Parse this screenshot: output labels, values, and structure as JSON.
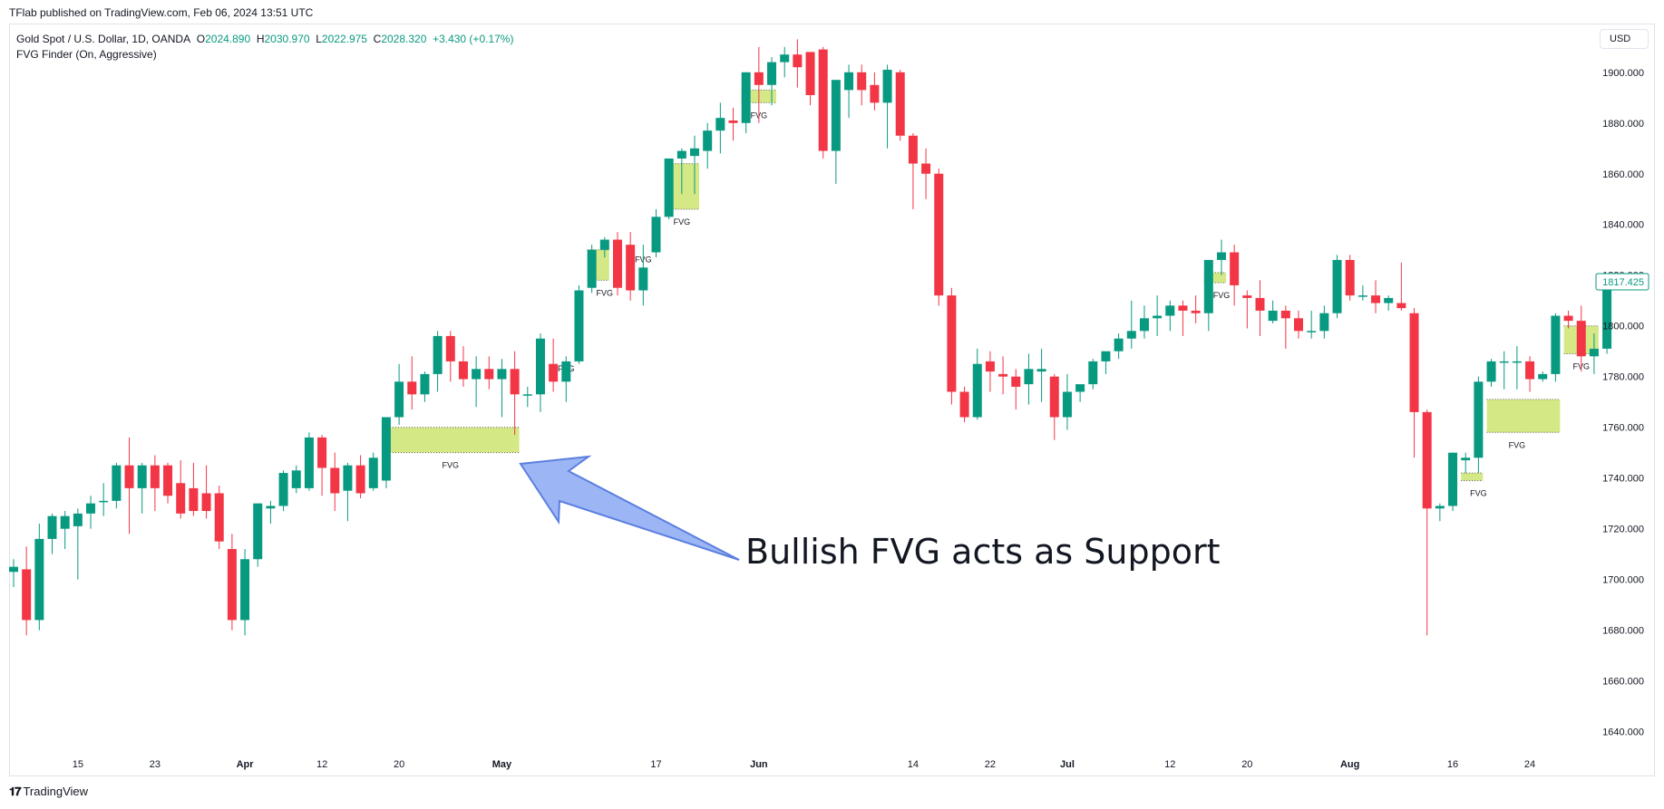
{
  "header": {
    "published": "TFlab published on TradingView.com, Feb 06, 2024 13:51 UTC"
  },
  "legend": {
    "symbol": "Gold Spot / U.S. Dollar, 1D, OANDA",
    "o_label": "O",
    "o_value": "2024.890",
    "h_label": "H",
    "h_value": "2030.970",
    "l_label": "L",
    "l_value": "2022.975",
    "c_label": "C",
    "c_value": "2028.320",
    "change": "+3.430 (+0.17%)",
    "indicator": "FVG Finder (On, Aggressive)"
  },
  "currency_button": "USD",
  "footer": {
    "logo": "𝟏𝟕",
    "brand": "TradingView"
  },
  "annotation": {
    "text": "Bullish FVG acts as Support"
  },
  "colors": {
    "up": "#089981",
    "down": "#f23645",
    "fvg": "#d4e986",
    "arrow": "#7b9cf2",
    "last_price": "#089981"
  },
  "chart_data": {
    "type": "candlestick",
    "y_axis": {
      "ylim": [
        1632,
        1916
      ],
      "ticks": [
        "1640.000",
        "1660.000",
        "1680.000",
        "1700.000",
        "1720.000",
        "1740.000",
        "1760.000",
        "1780.000",
        "1800.000",
        "1820.000",
        "1840.000",
        "1860.000",
        "1880.000",
        "1900.000"
      ],
      "tick_values": [
        1640,
        1660,
        1680,
        1700,
        1720,
        1740,
        1760,
        1780,
        1800,
        1820,
        1840,
        1860,
        1880,
        1900
      ]
    },
    "x_axis": {
      "labels": [
        "15",
        "23",
        "Apr",
        "12",
        "20",
        "May",
        "17",
        "Jun",
        "14",
        "22",
        "Jul",
        "12",
        "20",
        "Aug",
        "16",
        "24"
      ],
      "label_bar_index": [
        5,
        11,
        18,
        24,
        30,
        38,
        50,
        58,
        70,
        76,
        82,
        90,
        96,
        104,
        112,
        118
      ]
    },
    "last_price": "1817.425",
    "last_price_value": 1817.425,
    "candles": [
      {
        "o": 1703,
        "h": 1708,
        "l": 1697,
        "c": 1705
      },
      {
        "o": 1704,
        "h": 1713,
        "l": 1678,
        "c": 1684
      },
      {
        "o": 1684,
        "h": 1722,
        "l": 1680,
        "c": 1716
      },
      {
        "o": 1716,
        "h": 1726,
        "l": 1710,
        "c": 1725
      },
      {
        "o": 1720,
        "h": 1727,
        "l": 1712,
        "c": 1725
      },
      {
        "o": 1721,
        "h": 1728,
        "l": 1700,
        "c": 1726
      },
      {
        "o": 1726,
        "h": 1733,
        "l": 1720,
        "c": 1730
      },
      {
        "o": 1731,
        "h": 1738,
        "l": 1725,
        "c": 1731
      },
      {
        "o": 1731,
        "h": 1746,
        "l": 1728,
        "c": 1745
      },
      {
        "o": 1745,
        "h": 1756,
        "l": 1718,
        "c": 1736
      },
      {
        "o": 1736,
        "h": 1746,
        "l": 1726,
        "c": 1745
      },
      {
        "o": 1745,
        "h": 1749,
        "l": 1727,
        "c": 1736
      },
      {
        "o": 1745,
        "h": 1746,
        "l": 1730,
        "c": 1733
      },
      {
        "o": 1738,
        "h": 1747,
        "l": 1724,
        "c": 1726
      },
      {
        "o": 1736,
        "h": 1746,
        "l": 1725,
        "c": 1727
      },
      {
        "o": 1734,
        "h": 1745,
        "l": 1724,
        "c": 1727
      },
      {
        "o": 1734,
        "h": 1737,
        "l": 1712,
        "c": 1715
      },
      {
        "o": 1712,
        "h": 1718,
        "l": 1680,
        "c": 1684
      },
      {
        "o": 1684,
        "h": 1712,
        "l": 1678,
        "c": 1708
      },
      {
        "o": 1708,
        "h": 1730,
        "l": 1705,
        "c": 1730
      },
      {
        "o": 1728,
        "h": 1731,
        "l": 1722,
        "c": 1729
      },
      {
        "o": 1729,
        "h": 1743,
        "l": 1727,
        "c": 1742
      },
      {
        "o": 1736,
        "h": 1745,
        "l": 1734,
        "c": 1743
      },
      {
        "o": 1736,
        "h": 1758,
        "l": 1735,
        "c": 1756
      },
      {
        "o": 1756,
        "h": 1757,
        "l": 1733,
        "c": 1744
      },
      {
        "o": 1744,
        "h": 1750,
        "l": 1727,
        "c": 1734
      },
      {
        "o": 1735,
        "h": 1746,
        "l": 1723,
        "c": 1745
      },
      {
        "o": 1745,
        "h": 1749,
        "l": 1732,
        "c": 1734
      },
      {
        "o": 1736,
        "h": 1750,
        "l": 1735,
        "c": 1748
      },
      {
        "o": 1739,
        "h": 1764,
        "l": 1736,
        "c": 1764
      },
      {
        "o": 1764,
        "h": 1785,
        "l": 1761,
        "c": 1778
      },
      {
        "o": 1778,
        "h": 1788,
        "l": 1767,
        "c": 1773
      },
      {
        "o": 1773,
        "h": 1782,
        "l": 1770,
        "c": 1781
      },
      {
        "o": 1781,
        "h": 1798,
        "l": 1774,
        "c": 1796
      },
      {
        "o": 1796,
        "h": 1798,
        "l": 1778,
        "c": 1786
      },
      {
        "o": 1786,
        "h": 1792,
        "l": 1776,
        "c": 1779
      },
      {
        "o": 1779,
        "h": 1788,
        "l": 1768,
        "c": 1783
      },
      {
        "o": 1783,
        "h": 1788,
        "l": 1775,
        "c": 1779
      },
      {
        "o": 1779,
        "h": 1787,
        "l": 1764,
        "c": 1783
      },
      {
        "o": 1783,
        "h": 1790,
        "l": 1757,
        "c": 1773
      },
      {
        "o": 1773,
        "h": 1776,
        "l": 1768,
        "c": 1773
      },
      {
        "o": 1773,
        "h": 1797,
        "l": 1766,
        "c": 1795
      },
      {
        "o": 1785,
        "h": 1795,
        "l": 1774,
        "c": 1778
      },
      {
        "o": 1778,
        "h": 1788,
        "l": 1770,
        "c": 1786
      },
      {
        "o": 1786,
        "h": 1816,
        "l": 1785,
        "c": 1814
      },
      {
        "o": 1815,
        "h": 1832,
        "l": 1813,
        "c": 1830
      },
      {
        "o": 1830,
        "h": 1835,
        "l": 1827,
        "c": 1834
      },
      {
        "o": 1834,
        "h": 1837,
        "l": 1812,
        "c": 1815
      },
      {
        "o": 1832,
        "h": 1837,
        "l": 1810,
        "c": 1814
      },
      {
        "o": 1814,
        "h": 1832,
        "l": 1808,
        "c": 1823
      },
      {
        "o": 1829,
        "h": 1846,
        "l": 1827,
        "c": 1843
      },
      {
        "o": 1843,
        "h": 1866,
        "l": 1842,
        "c": 1866
      },
      {
        "o": 1866,
        "h": 1870,
        "l": 1852,
        "c": 1869
      },
      {
        "o": 1867,
        "h": 1875,
        "l": 1852,
        "c": 1870
      },
      {
        "o": 1869,
        "h": 1880,
        "l": 1862,
        "c": 1877
      },
      {
        "o": 1877,
        "h": 1888,
        "l": 1868,
        "c": 1882
      },
      {
        "o": 1881,
        "h": 1886,
        "l": 1873,
        "c": 1880
      },
      {
        "o": 1880,
        "h": 1900,
        "l": 1876,
        "c": 1900
      },
      {
        "o": 1900,
        "h": 1910,
        "l": 1880,
        "c": 1895
      },
      {
        "o": 1895,
        "h": 1906,
        "l": 1887,
        "c": 1904
      },
      {
        "o": 1904,
        "h": 1910,
        "l": 1898,
        "c": 1907
      },
      {
        "o": 1907,
        "h": 1913,
        "l": 1894,
        "c": 1902
      },
      {
        "o": 1908,
        "h": 1908,
        "l": 1887,
        "c": 1891
      },
      {
        "o": 1909,
        "h": 1910,
        "l": 1866,
        "c": 1869
      },
      {
        "o": 1869,
        "h": 1897,
        "l": 1856,
        "c": 1897
      },
      {
        "o": 1893,
        "h": 1903,
        "l": 1882,
        "c": 1900
      },
      {
        "o": 1900,
        "h": 1903,
        "l": 1887,
        "c": 1893
      },
      {
        "o": 1895,
        "h": 1900,
        "l": 1885,
        "c": 1888
      },
      {
        "o": 1888,
        "h": 1903,
        "l": 1870,
        "c": 1901
      },
      {
        "o": 1900,
        "h": 1901,
        "l": 1873,
        "c": 1875
      },
      {
        "o": 1875,
        "h": 1876,
        "l": 1846,
        "c": 1864
      },
      {
        "o": 1864,
        "h": 1870,
        "l": 1850,
        "c": 1860
      },
      {
        "o": 1860,
        "h": 1862,
        "l": 1808,
        "c": 1812
      },
      {
        "o": 1812,
        "h": 1815,
        "l": 1769,
        "c": 1774
      },
      {
        "o": 1774,
        "h": 1776,
        "l": 1762,
        "c": 1764
      },
      {
        "o": 1764,
        "h": 1791,
        "l": 1763,
        "c": 1785
      },
      {
        "o": 1786,
        "h": 1790,
        "l": 1774,
        "c": 1782
      },
      {
        "o": 1781,
        "h": 1788,
        "l": 1773,
        "c": 1780
      },
      {
        "o": 1780,
        "h": 1783,
        "l": 1767,
        "c": 1776
      },
      {
        "o": 1777,
        "h": 1789,
        "l": 1769,
        "c": 1783
      },
      {
        "o": 1782,
        "h": 1791,
        "l": 1770,
        "c": 1783
      },
      {
        "o": 1780,
        "h": 1781,
        "l": 1755,
        "c": 1764
      },
      {
        "o": 1764,
        "h": 1781,
        "l": 1759,
        "c": 1774
      },
      {
        "o": 1774,
        "h": 1776,
        "l": 1770,
        "c": 1777
      },
      {
        "o": 1777,
        "h": 1787,
        "l": 1775,
        "c": 1786
      },
      {
        "o": 1786,
        "h": 1789,
        "l": 1781,
        "c": 1790
      },
      {
        "o": 1790,
        "h": 1797,
        "l": 1787,
        "c": 1795
      },
      {
        "o": 1795,
        "h": 1810,
        "l": 1791,
        "c": 1798
      },
      {
        "o": 1798,
        "h": 1808,
        "l": 1795,
        "c": 1803
      },
      {
        "o": 1803,
        "h": 1812,
        "l": 1796,
        "c": 1804
      },
      {
        "o": 1804,
        "h": 1810,
        "l": 1798,
        "c": 1808
      },
      {
        "o": 1808,
        "h": 1810,
        "l": 1796,
        "c": 1806
      },
      {
        "o": 1806,
        "h": 1812,
        "l": 1801,
        "c": 1805
      },
      {
        "o": 1805,
        "h": 1826,
        "l": 1798,
        "c": 1826
      },
      {
        "o": 1826,
        "h": 1834,
        "l": 1820,
        "c": 1829
      },
      {
        "o": 1829,
        "h": 1832,
        "l": 1808,
        "c": 1816
      },
      {
        "o": 1812,
        "h": 1814,
        "l": 1799,
        "c": 1811
      },
      {
        "o": 1811,
        "h": 1818,
        "l": 1796,
        "c": 1806
      },
      {
        "o": 1802,
        "h": 1810,
        "l": 1801,
        "c": 1806
      },
      {
        "o": 1806,
        "h": 1808,
        "l": 1791,
        "c": 1803
      },
      {
        "o": 1803,
        "h": 1806,
        "l": 1795,
        "c": 1798
      },
      {
        "o": 1798,
        "h": 1806,
        "l": 1795,
        "c": 1798
      },
      {
        "o": 1798,
        "h": 1808,
        "l": 1795,
        "c": 1805
      },
      {
        "o": 1805,
        "h": 1828,
        "l": 1803,
        "c": 1826
      },
      {
        "o": 1826,
        "h": 1828,
        "l": 1810,
        "c": 1812
      },
      {
        "o": 1812,
        "h": 1816,
        "l": 1810,
        "c": 1812
      },
      {
        "o": 1812,
        "h": 1818,
        "l": 1805,
        "c": 1809
      },
      {
        "o": 1809,
        "h": 1812,
        "l": 1806,
        "c": 1811
      },
      {
        "o": 1809,
        "h": 1825,
        "l": 1806,
        "c": 1807
      },
      {
        "o": 1805,
        "h": 1807,
        "l": 1748,
        "c": 1766
      },
      {
        "o": 1766,
        "h": 1767,
        "l": 1678,
        "c": 1728
      },
      {
        "o": 1728,
        "h": 1730,
        "l": 1723,
        "c": 1729
      },
      {
        "o": 1729,
        "h": 1750,
        "l": 1727,
        "c": 1750
      },
      {
        "o": 1747,
        "h": 1750,
        "l": 1742,
        "c": 1748
      },
      {
        "o": 1748,
        "h": 1780,
        "l": 1742,
        "c": 1778
      },
      {
        "o": 1778,
        "h": 1787,
        "l": 1776,
        "c": 1786
      },
      {
        "o": 1786,
        "h": 1790,
        "l": 1775,
        "c": 1786
      },
      {
        "o": 1786,
        "h": 1792,
        "l": 1775,
        "c": 1786
      },
      {
        "o": 1786,
        "h": 1788,
        "l": 1774,
        "c": 1779
      },
      {
        "o": 1779,
        "h": 1782,
        "l": 1778,
        "c": 1781
      },
      {
        "o": 1781,
        "h": 1805,
        "l": 1778,
        "c": 1804
      },
      {
        "o": 1804,
        "h": 1806,
        "l": 1799,
        "c": 1802
      },
      {
        "o": 1802,
        "h": 1808,
        "l": 1782,
        "c": 1788
      },
      {
        "o": 1788,
        "h": 1797,
        "l": 1781,
        "c": 1791
      },
      {
        "o": 1791,
        "h": 1820,
        "l": 1789,
        "c": 1817
      }
    ],
    "fvgs": [
      {
        "start": 29,
        "end": 39,
        "top": 1760,
        "bottom": 1750,
        "label": "FVG",
        "label_bar": 34
      },
      {
        "start": 45,
        "end": 46,
        "top": 1830,
        "bottom": 1818,
        "label": "FVG",
        "label_bar": 46
      },
      {
        "start": 51,
        "end": 53,
        "top": 1864,
        "bottom": 1846,
        "label": "FVG",
        "label_bar": 52
      },
      {
        "start": 57,
        "end": 59,
        "top": 1893,
        "bottom": 1888,
        "label": "FVG",
        "label_bar": 58
      },
      {
        "start": 93,
        "end": 94,
        "top": 1821,
        "bottom": 1817,
        "label": "FVG",
        "label_bar": 94
      },
      {
        "start": 113,
        "end": 114,
        "top": 1742,
        "bottom": 1739,
        "label": "FVG",
        "label_bar": 114
      },
      {
        "start": 115,
        "end": 120,
        "top": 1771,
        "bottom": 1758,
        "label": "FVG",
        "label_bar": 117
      },
      {
        "start": 121,
        "end": 123,
        "top": 1800,
        "bottom": 1789,
        "label": "FVG",
        "label_bar": 122
      }
    ],
    "extra_fvg_labels": [
      {
        "label": "FVG",
        "bar": 49,
        "value": 1825
      },
      {
        "label": "FVG",
        "bar": 43,
        "value": 1782
      }
    ]
  }
}
